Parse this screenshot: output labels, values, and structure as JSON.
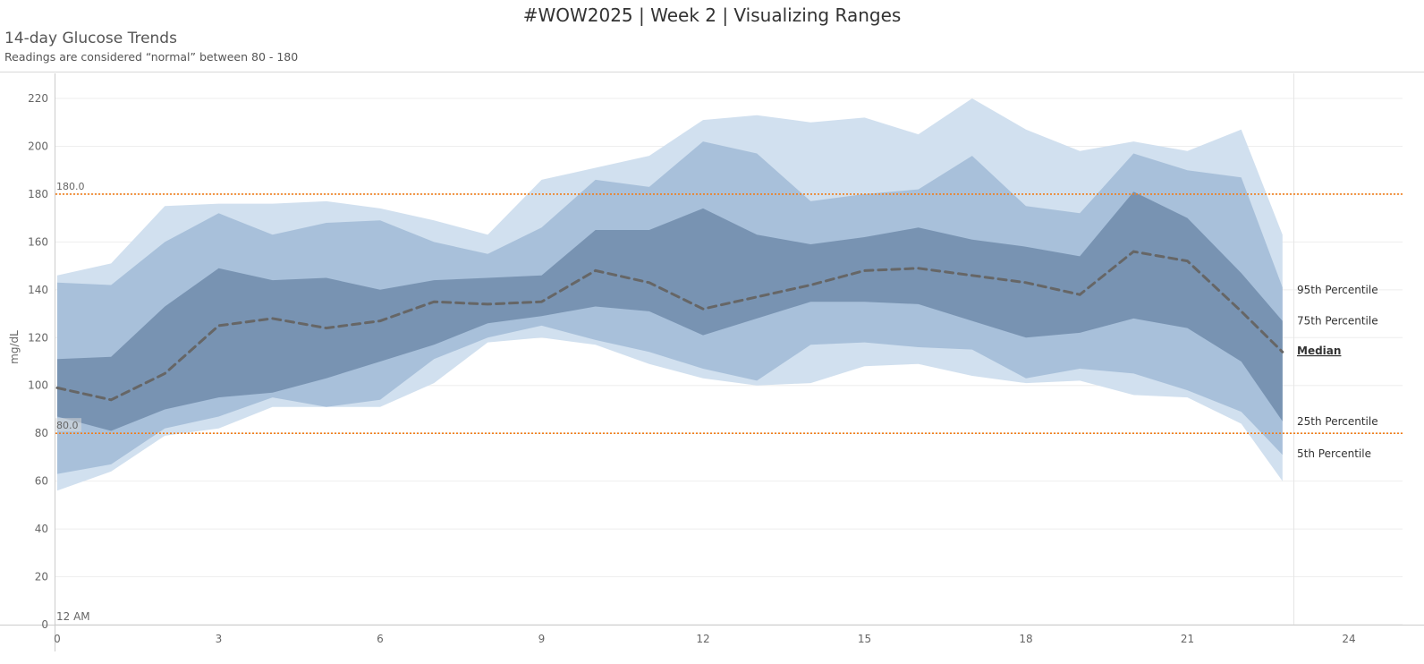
{
  "page": {
    "title": "#WOW2025 | Week 2 | Visualizing Ranges",
    "heading": "14-day Glucose Trends",
    "subtitle": "Readings are considered “normal” between 80 - 180"
  },
  "chart_data": {
    "type": "area",
    "ylabel": "mg/dL",
    "xlim": [
      0,
      24
    ],
    "ylim": [
      0,
      230
    ],
    "x_ticks": [
      0,
      3,
      6,
      9,
      12,
      15,
      18,
      21,
      24
    ],
    "y_ticks": [
      0,
      20,
      40,
      60,
      80,
      100,
      120,
      140,
      160,
      180,
      200,
      220
    ],
    "x": [
      0,
      1,
      2,
      3,
      4,
      5,
      6,
      7,
      8,
      9,
      10,
      11,
      12,
      13,
      14,
      15,
      16,
      17,
      18,
      19,
      20,
      21,
      22,
      23
    ],
    "x_start_label": "12 AM",
    "series": [
      {
        "name": "95th Percentile",
        "values": [
          146,
          151,
          175,
          176,
          176,
          177,
          174,
          169,
          163,
          186,
          191,
          196,
          211,
          213,
          210,
          212,
          205,
          220,
          207,
          198,
          202,
          198,
          207,
          163
        ]
      },
      {
        "name": "75th Percentile",
        "values": [
          143,
          142,
          160,
          172,
          163,
          168,
          169,
          160,
          155,
          166,
          186,
          183,
          202,
          197,
          177,
          180,
          182,
          196,
          175,
          172,
          197,
          190,
          187,
          141
        ]
      },
      {
        "name": "Median",
        "values": [
          99,
          94,
          105,
          125,
          128,
          124,
          127,
          135,
          134,
          135,
          148,
          143,
          132,
          137,
          142,
          148,
          149,
          146,
          143,
          138,
          156,
          152,
          131,
          114
        ]
      },
      {
        "name": "25th Percentile",
        "values": [
          87,
          81,
          90,
          95,
          97,
          103,
          110,
          117,
          126,
          129,
          133,
          131,
          121,
          128,
          135,
          135,
          134,
          127,
          120,
          122,
          128,
          124,
          110,
          85
        ]
      },
      {
        "name": "5th Percentile",
        "values": [
          56,
          64,
          79,
          82,
          91,
          91,
          91,
          101,
          118,
          120,
          117,
          109,
          103,
          100,
          101,
          108,
          109,
          104,
          101,
          102,
          96,
          95,
          84,
          60
        ]
      }
    ],
    "inner_band_upper": [
      111,
      112,
      133,
      149,
      144,
      145,
      140,
      144,
      145,
      146,
      165,
      165,
      174,
      163,
      159,
      162,
      166,
      161,
      158,
      154,
      181,
      170,
      147,
      127
    ],
    "outer_band_lower": [
      63,
      67,
      82,
      87,
      95,
      91,
      94,
      111,
      120,
      125,
      119,
      114,
      107,
      102,
      117,
      118,
      116,
      115,
      103,
      107,
      105,
      98,
      89,
      71
    ],
    "reference_lines": [
      {
        "value": 180,
        "label": "180.0"
      },
      {
        "value": 80,
        "label": "80.0"
      }
    ],
    "colors": {
      "outer_band": "#d1e0ef",
      "mid_band": "#a8c0da",
      "inner_band": "#7893b2",
      "median_line": "#666666",
      "reference_line": "#f07d1a",
      "gridline": "#eeeeee"
    },
    "grid": true
  }
}
